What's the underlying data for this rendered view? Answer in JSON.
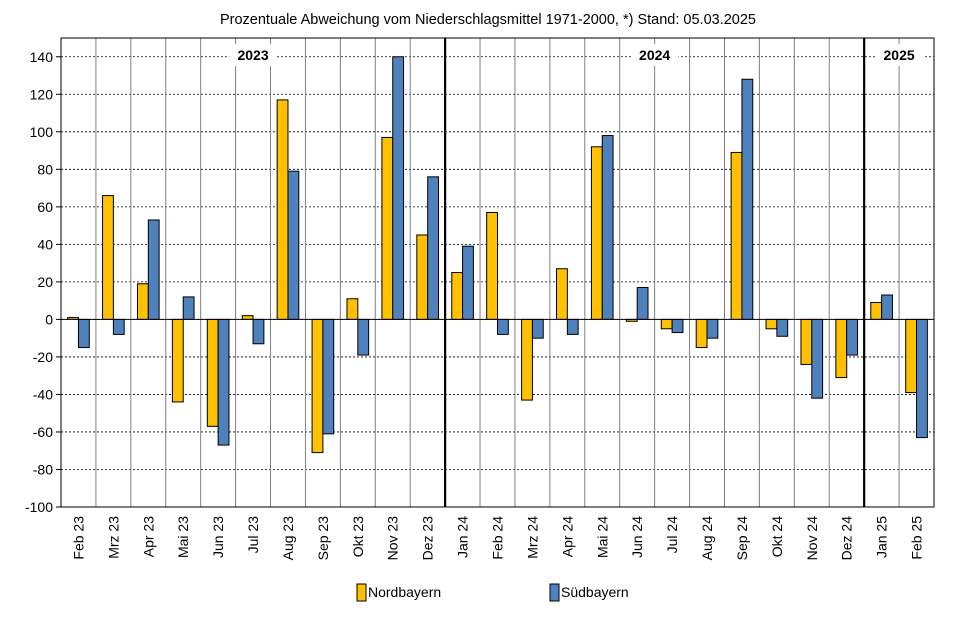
{
  "chart_data": {
    "type": "bar",
    "title": "Prozentuale Abweichung vom Niederschlagsmittel 1971-2000,  *) Stand:  05.03.2025",
    "categories": [
      "Feb 23",
      "Mrz 23",
      "Apr 23",
      "Mai 23",
      "Jun 23",
      "Jul 23",
      "Aug 23",
      "Sep 23",
      "Okt 23",
      "Nov 23",
      "Dez 23",
      "Jan 24",
      "Feb 24",
      "Mrz 24",
      "Apr 24",
      "Mai 24",
      "Jun 24",
      "Jul 24",
      "Aug 24",
      "Sep 24",
      "Okt 24",
      "Nov 24",
      "Dez 24",
      "Jan 25",
      "Feb 25"
    ],
    "series": [
      {
        "name": "Nordbayern",
        "color": "#FFC000",
        "values": [
          1,
          66,
          19,
          -44,
          -57,
          2,
          117,
          -71,
          11,
          97,
          45,
          25,
          57,
          -43,
          27,
          92,
          -1,
          -5,
          -15,
          89,
          -5,
          -24,
          -31,
          9,
          -39
        ]
      },
      {
        "name": "Südbayern",
        "color": "#4F81BD",
        "values": [
          -15,
          -8,
          53,
          12,
          -67,
          -13,
          79,
          -61,
          -19,
          140,
          76,
          39,
          -8,
          -10,
          -8,
          98,
          17,
          -7,
          -10,
          128,
          -9,
          -42,
          -19,
          13,
          -63
        ]
      }
    ],
    "ylim": [
      -100,
      150
    ],
    "yticks": [
      -100,
      -80,
      -60,
      -40,
      -20,
      0,
      20,
      40,
      60,
      80,
      100,
      120,
      140
    ],
    "year_labels": [
      {
        "label": "2023",
        "start": 0,
        "end": 10
      },
      {
        "label": "2024",
        "start": 11,
        "end": 22
      },
      {
        "label": "2025",
        "start": 23,
        "end": 24
      }
    ],
    "year_separators_after": [
      10,
      22
    ],
    "grid": true,
    "legend_position": "bottom",
    "xlabel": "",
    "ylabel": ""
  }
}
